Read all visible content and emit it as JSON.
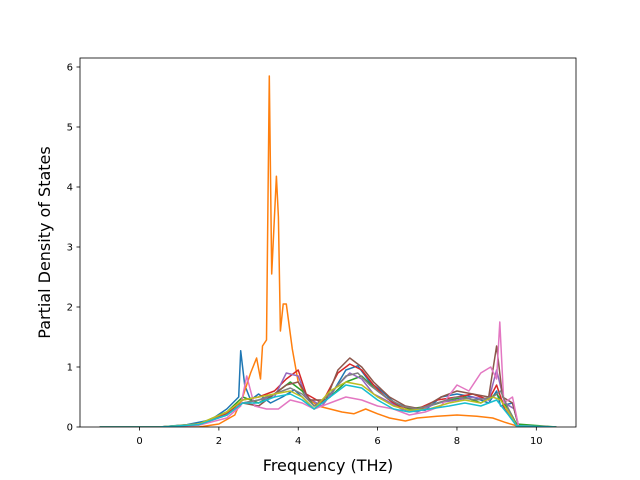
{
  "chart_data": {
    "type": "line",
    "title": "",
    "xlabel": "Frequency (THz)",
    "ylabel": "Partial Density of States",
    "xlim": [
      -1.5,
      11.0
    ],
    "ylim": [
      0,
      6.15
    ],
    "xticks": [
      0,
      2,
      4,
      6,
      8,
      10
    ],
    "xtick_labels": [
      "0",
      "2",
      "4",
      "6",
      "8",
      "10"
    ],
    "yticks": [
      0,
      1,
      2,
      3,
      4,
      5,
      6
    ],
    "ytick_labels": [
      "0",
      "1",
      "2",
      "3",
      "4",
      "5",
      "6"
    ],
    "grid": false,
    "legend": "none",
    "series": [
      {
        "color": "#1f77b4",
        "points": [
          [
            -1.0,
            0
          ],
          [
            0.5,
            0
          ],
          [
            1.2,
            0.04
          ],
          [
            1.8,
            0.12
          ],
          [
            2.2,
            0.3
          ],
          [
            2.5,
            0.5
          ],
          [
            2.55,
            1.27
          ],
          [
            2.65,
            0.7
          ],
          [
            2.8,
            0.45
          ],
          [
            3.0,
            0.55
          ],
          [
            3.3,
            0.4
          ],
          [
            3.6,
            0.5
          ],
          [
            3.9,
            0.62
          ],
          [
            4.1,
            0.5
          ],
          [
            4.4,
            0.3
          ],
          [
            4.8,
            0.5
          ],
          [
            5.2,
            0.95
          ],
          [
            5.5,
            1.02
          ],
          [
            5.8,
            0.75
          ],
          [
            6.1,
            0.6
          ],
          [
            6.4,
            0.42
          ],
          [
            6.8,
            0.3
          ],
          [
            7.2,
            0.28
          ],
          [
            7.6,
            0.5
          ],
          [
            8.0,
            0.55
          ],
          [
            8.4,
            0.5
          ],
          [
            8.8,
            0.4
          ],
          [
            9.0,
            0.6
          ],
          [
            9.1,
            0.35
          ],
          [
            9.4,
            0.4
          ],
          [
            9.55,
            0.02
          ],
          [
            10.5,
            0
          ]
        ]
      },
      {
        "color": "#ff7f0e",
        "points": [
          [
            -1.0,
            0
          ],
          [
            1.5,
            0
          ],
          [
            2.0,
            0.05
          ],
          [
            2.4,
            0.2
          ],
          [
            2.6,
            0.5
          ],
          [
            2.8,
            0.9
          ],
          [
            2.95,
            1.15
          ],
          [
            3.05,
            0.8
          ],
          [
            3.1,
            1.35
          ],
          [
            3.2,
            1.45
          ],
          [
            3.27,
            5.85
          ],
          [
            3.33,
            2.55
          ],
          [
            3.45,
            4.18
          ],
          [
            3.5,
            3.5
          ],
          [
            3.55,
            1.6
          ],
          [
            3.62,
            2.05
          ],
          [
            3.7,
            2.05
          ],
          [
            3.85,
            1.3
          ],
          [
            4.0,
            0.75
          ],
          [
            4.2,
            0.5
          ],
          [
            4.5,
            0.35
          ],
          [
            4.8,
            0.3
          ],
          [
            5.1,
            0.25
          ],
          [
            5.4,
            0.22
          ],
          [
            5.7,
            0.3
          ],
          [
            6.0,
            0.22
          ],
          [
            6.3,
            0.15
          ],
          [
            6.7,
            0.1
          ],
          [
            7.0,
            0.15
          ],
          [
            7.5,
            0.18
          ],
          [
            8.0,
            0.2
          ],
          [
            8.5,
            0.18
          ],
          [
            8.9,
            0.15
          ],
          [
            9.2,
            0.08
          ],
          [
            9.5,
            0.02
          ],
          [
            10.5,
            0
          ]
        ]
      },
      {
        "color": "#2ca02c",
        "points": [
          [
            -1.0,
            0
          ],
          [
            0.5,
            0
          ],
          [
            1.5,
            0.05
          ],
          [
            2.2,
            0.25
          ],
          [
            2.6,
            0.5
          ],
          [
            3.0,
            0.4
          ],
          [
            3.4,
            0.55
          ],
          [
            3.8,
            0.75
          ],
          [
            4.1,
            0.6
          ],
          [
            4.4,
            0.35
          ],
          [
            4.8,
            0.5
          ],
          [
            5.2,
            0.75
          ],
          [
            5.6,
            0.85
          ],
          [
            6.0,
            0.6
          ],
          [
            6.4,
            0.4
          ],
          [
            6.8,
            0.3
          ],
          [
            7.3,
            0.35
          ],
          [
            7.8,
            0.45
          ],
          [
            8.2,
            0.5
          ],
          [
            8.6,
            0.4
          ],
          [
            9.0,
            0.55
          ],
          [
            9.3,
            0.3
          ],
          [
            9.5,
            0.05
          ],
          [
            10.5,
            0
          ]
        ]
      },
      {
        "color": "#d62728",
        "points": [
          [
            -1.0,
            0
          ],
          [
            0.5,
            0
          ],
          [
            1.5,
            0.04
          ],
          [
            2.2,
            0.22
          ],
          [
            2.6,
            0.45
          ],
          [
            3.0,
            0.5
          ],
          [
            3.4,
            0.6
          ],
          [
            3.7,
            0.8
          ],
          [
            4.0,
            0.95
          ],
          [
            4.2,
            0.55
          ],
          [
            4.6,
            0.4
          ],
          [
            5.0,
            0.9
          ],
          [
            5.3,
            1.05
          ],
          [
            5.6,
            0.95
          ],
          [
            5.9,
            0.7
          ],
          [
            6.2,
            0.5
          ],
          [
            6.5,
            0.35
          ],
          [
            7.0,
            0.3
          ],
          [
            7.5,
            0.45
          ],
          [
            8.0,
            0.5
          ],
          [
            8.4,
            0.55
          ],
          [
            8.8,
            0.45
          ],
          [
            9.0,
            0.7
          ],
          [
            9.2,
            0.3
          ],
          [
            9.5,
            0.02
          ],
          [
            10.5,
            0
          ]
        ]
      },
      {
        "color": "#9467bd",
        "points": [
          [
            -1.0,
            0
          ],
          [
            0.5,
            0
          ],
          [
            1.5,
            0.05
          ],
          [
            2.2,
            0.2
          ],
          [
            2.6,
            0.4
          ],
          [
            3.0,
            0.45
          ],
          [
            3.4,
            0.5
          ],
          [
            3.7,
            0.9
          ],
          [
            4.0,
            0.85
          ],
          [
            4.2,
            0.5
          ],
          [
            4.6,
            0.35
          ],
          [
            5.0,
            0.7
          ],
          [
            5.3,
            0.9
          ],
          [
            5.6,
            0.8
          ],
          [
            5.9,
            0.55
          ],
          [
            6.2,
            0.45
          ],
          [
            6.6,
            0.3
          ],
          [
            7.0,
            0.25
          ],
          [
            7.5,
            0.4
          ],
          [
            8.0,
            0.45
          ],
          [
            8.4,
            0.5
          ],
          [
            8.8,
            0.45
          ],
          [
            9.0,
            0.95
          ],
          [
            9.2,
            0.4
          ],
          [
            9.45,
            0.3
          ],
          [
            9.55,
            0.02
          ],
          [
            10.5,
            0
          ]
        ]
      },
      {
        "color": "#8c564b",
        "points": [
          [
            -1.0,
            0
          ],
          [
            0.5,
            0
          ],
          [
            1.5,
            0.04
          ],
          [
            2.2,
            0.2
          ],
          [
            2.6,
            0.4
          ],
          [
            3.0,
            0.35
          ],
          [
            3.4,
            0.55
          ],
          [
            3.7,
            0.7
          ],
          [
            4.0,
            0.75
          ],
          [
            4.3,
            0.45
          ],
          [
            4.7,
            0.45
          ],
          [
            5.0,
            0.95
          ],
          [
            5.3,
            1.15
          ],
          [
            5.6,
            1.0
          ],
          [
            5.9,
            0.75
          ],
          [
            6.3,
            0.5
          ],
          [
            6.7,
            0.35
          ],
          [
            7.1,
            0.3
          ],
          [
            7.6,
            0.5
          ],
          [
            8.0,
            0.6
          ],
          [
            8.4,
            0.55
          ],
          [
            8.8,
            0.5
          ],
          [
            9.0,
            1.35
          ],
          [
            9.15,
            0.5
          ],
          [
            9.4,
            0.4
          ],
          [
            9.55,
            0.02
          ],
          [
            10.5,
            0
          ]
        ]
      },
      {
        "color": "#e377c2",
        "points": [
          [
            -1.0,
            0
          ],
          [
            0.5,
            0
          ],
          [
            1.5,
            0.03
          ],
          [
            2.2,
            0.15
          ],
          [
            2.55,
            0.35
          ],
          [
            2.7,
            0.85
          ],
          [
            2.9,
            0.35
          ],
          [
            3.2,
            0.3
          ],
          [
            3.5,
            0.3
          ],
          [
            3.8,
            0.45
          ],
          [
            4.1,
            0.4
          ],
          [
            4.4,
            0.3
          ],
          [
            4.8,
            0.4
          ],
          [
            5.2,
            0.5
          ],
          [
            5.6,
            0.45
          ],
          [
            6.0,
            0.35
          ],
          [
            6.4,
            0.3
          ],
          [
            6.8,
            0.2
          ],
          [
            7.2,
            0.25
          ],
          [
            7.6,
            0.35
          ],
          [
            8.0,
            0.7
          ],
          [
            8.3,
            0.6
          ],
          [
            8.6,
            0.9
          ],
          [
            8.85,
            1.0
          ],
          [
            9.0,
            0.8
          ],
          [
            9.08,
            1.75
          ],
          [
            9.18,
            0.4
          ],
          [
            9.4,
            0.5
          ],
          [
            9.55,
            0.02
          ],
          [
            10.5,
            0
          ]
        ]
      },
      {
        "color": "#7f7f7f",
        "points": [
          [
            -1.0,
            0
          ],
          [
            0.5,
            0
          ],
          [
            1.5,
            0.04
          ],
          [
            2.2,
            0.2
          ],
          [
            2.6,
            0.4
          ],
          [
            3.0,
            0.45
          ],
          [
            3.4,
            0.55
          ],
          [
            3.8,
            0.65
          ],
          [
            4.1,
            0.55
          ],
          [
            4.4,
            0.35
          ],
          [
            4.8,
            0.55
          ],
          [
            5.2,
            0.85
          ],
          [
            5.5,
            0.9
          ],
          [
            5.8,
            0.7
          ],
          [
            6.2,
            0.5
          ],
          [
            6.6,
            0.35
          ],
          [
            7.0,
            0.3
          ],
          [
            7.5,
            0.4
          ],
          [
            8.0,
            0.5
          ],
          [
            8.5,
            0.45
          ],
          [
            8.9,
            0.5
          ],
          [
            9.1,
            0.6
          ],
          [
            9.3,
            0.3
          ],
          [
            9.5,
            0.02
          ],
          [
            10.5,
            0
          ]
        ]
      },
      {
        "color": "#bcbd22",
        "points": [
          [
            -1.0,
            0
          ],
          [
            0.5,
            0
          ],
          [
            1.5,
            0.05
          ],
          [
            2.2,
            0.25
          ],
          [
            2.6,
            0.45
          ],
          [
            3.0,
            0.5
          ],
          [
            3.4,
            0.55
          ],
          [
            3.8,
            0.6
          ],
          [
            4.1,
            0.5
          ],
          [
            4.4,
            0.3
          ],
          [
            4.8,
            0.6
          ],
          [
            5.2,
            0.75
          ],
          [
            5.6,
            0.7
          ],
          [
            6.0,
            0.5
          ],
          [
            6.4,
            0.35
          ],
          [
            6.8,
            0.28
          ],
          [
            7.3,
            0.3
          ],
          [
            7.8,
            0.4
          ],
          [
            8.2,
            0.45
          ],
          [
            8.6,
            0.4
          ],
          [
            8.9,
            0.5
          ],
          [
            9.1,
            0.45
          ],
          [
            9.3,
            0.25
          ],
          [
            9.5,
            0.02
          ],
          [
            10.5,
            0
          ]
        ]
      },
      {
        "color": "#17becf",
        "points": [
          [
            -1.0,
            0
          ],
          [
            0.5,
            0
          ],
          [
            1.5,
            0.04
          ],
          [
            2.2,
            0.2
          ],
          [
            2.6,
            0.4
          ],
          [
            3.0,
            0.4
          ],
          [
            3.4,
            0.5
          ],
          [
            3.8,
            0.55
          ],
          [
            4.1,
            0.45
          ],
          [
            4.4,
            0.3
          ],
          [
            4.8,
            0.5
          ],
          [
            5.2,
            0.7
          ],
          [
            5.6,
            0.65
          ],
          [
            6.0,
            0.45
          ],
          [
            6.4,
            0.3
          ],
          [
            6.8,
            0.25
          ],
          [
            7.3,
            0.3
          ],
          [
            7.8,
            0.35
          ],
          [
            8.2,
            0.4
          ],
          [
            8.6,
            0.35
          ],
          [
            9.0,
            0.45
          ],
          [
            9.3,
            0.2
          ],
          [
            9.5,
            0.02
          ],
          [
            10.5,
            0
          ]
        ]
      }
    ]
  }
}
